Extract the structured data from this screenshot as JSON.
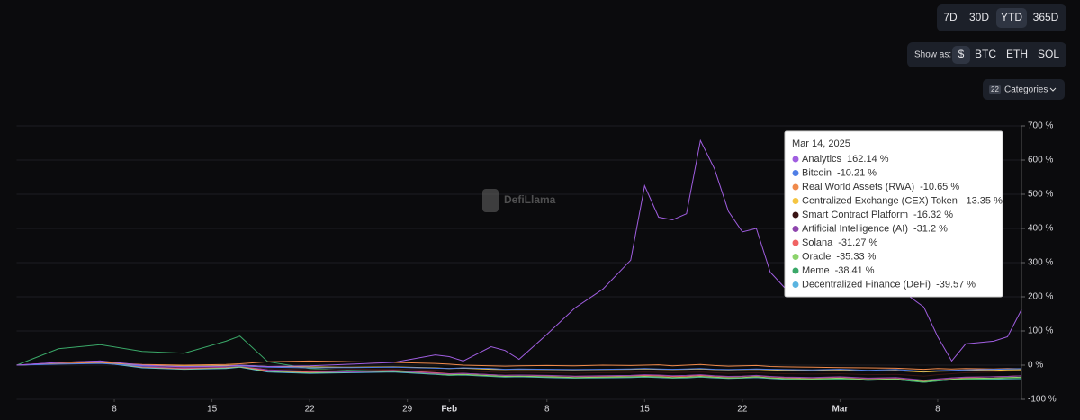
{
  "chart_data": {
    "type": "line",
    "watermark": "DefiLlama",
    "controls": {
      "ranges": [
        "7D",
        "30D",
        "YTD",
        "365D"
      ],
      "show_as_label": "Show as:",
      "currencies": [
        "$",
        "BTC",
        "ETH",
        "SOL"
      ],
      "categories_count": 22,
      "categories_label": "Categories"
    },
    "x": [
      1,
      4,
      7,
      10,
      13,
      16,
      17,
      19,
      22,
      25,
      28,
      31,
      32,
      33,
      35,
      36,
      37,
      39,
      41,
      43,
      45,
      46,
      47,
      48,
      49,
      50,
      51,
      52,
      53,
      54,
      55,
      56,
      58,
      60,
      62,
      64,
      66,
      67,
      68,
      69,
      71,
      72,
      73
    ],
    "xlim": [
      1,
      73
    ],
    "xticks": [
      8,
      15,
      22,
      29,
      {
        "value": 32,
        "label": "Feb"
      },
      {
        "value": 39,
        "label": "8"
      },
      {
        "value": 46,
        "label": "15"
      },
      {
        "value": 53,
        "label": "22"
      },
      {
        "value": 60,
        "label": "Mar"
      },
      {
        "value": 67,
        "label": "8"
      }
    ],
    "ylim": [
      -100,
      700
    ],
    "yticks": [
      {
        "value": -100,
        "label": "-100 %"
      },
      {
        "value": 0,
        "label": "0 %"
      },
      {
        "value": 100,
        "label": "100 %"
      },
      {
        "value": 200,
        "label": "200 %"
      },
      {
        "value": 300,
        "label": "300 %"
      },
      {
        "value": 400,
        "label": "400 %"
      },
      {
        "value": 500,
        "label": "500 %"
      },
      {
        "value": 600,
        "label": "600 %"
      },
      {
        "value": 700,
        "label": "700 %"
      }
    ],
    "grid": true,
    "series": [
      {
        "name": "Analytics",
        "color": "#a05ee0",
        "values": [
          0,
          8,
          12,
          0,
          -5,
          -3,
          0,
          -4,
          -2,
          3,
          8,
          30,
          25,
          12,
          54,
          43,
          17,
          90,
          167,
          222,
          307,
          525,
          433,
          425,
          443,
          657,
          575,
          450,
          390,
          400,
          272,
          228,
          200,
          260,
          200,
          230,
          170,
          83,
          12,
          62,
          70,
          83,
          162.14
        ]
      },
      {
        "name": "Bitcoin",
        "color": "#4f7ee6",
        "values": [
          0,
          3,
          5,
          -2,
          -4,
          -3,
          -2,
          -6,
          -8,
          -7,
          -6,
          -9,
          -10,
          -8,
          -10,
          -12,
          -11,
          -12,
          -13,
          -12,
          -11,
          -10,
          -11,
          -12,
          -11,
          -10,
          -12,
          -13,
          -12,
          -11,
          -12,
          -13,
          -14,
          -12,
          -15,
          -13,
          -18,
          -16,
          -15,
          -14,
          -12,
          -11,
          -10.21
        ]
      },
      {
        "name": "Real World Assets (RWA)",
        "color": "#f08a4b",
        "values": [
          0,
          5,
          8,
          2,
          0,
          2,
          4,
          10,
          12,
          10,
          8,
          5,
          3,
          0,
          -2,
          -3,
          -2,
          -1,
          -2,
          0,
          -1,
          0,
          1,
          -2,
          0,
          2,
          -1,
          -3,
          -2,
          -1,
          -4,
          -5,
          -6,
          -7,
          -8,
          -9,
          -12,
          -10,
          -11,
          -10,
          -11,
          -10,
          -10.65
        ]
      },
      {
        "name": "Centralized Exchange (CEX) Token",
        "color": "#f5c542",
        "values": [
          0,
          4,
          6,
          0,
          -3,
          -1,
          0,
          -4,
          -5,
          -6,
          -5,
          -8,
          -10,
          -9,
          -12,
          -13,
          -12,
          -13,
          -14,
          -13,
          -12,
          -11,
          -12,
          -13,
          -12,
          -11,
          -13,
          -14,
          -13,
          -12,
          -14,
          -15,
          -16,
          -15,
          -17,
          -16,
          -20,
          -18,
          -17,
          -16,
          -15,
          -14,
          -13.35
        ]
      },
      {
        "name": "Smart Contract Platform",
        "color": "#3a1414",
        "values": [
          0,
          6,
          10,
          -2,
          -6,
          -4,
          -2,
          -10,
          -14,
          -12,
          -11,
          -15,
          -18,
          -16,
          -20,
          -22,
          -21,
          -22,
          -24,
          -22,
          -21,
          -20,
          -21,
          -22,
          -21,
          -20,
          -22,
          -24,
          -23,
          -22,
          -24,
          -25,
          -26,
          -25,
          -28,
          -27,
          -32,
          -28,
          -25,
          -22,
          -20,
          -18,
          -16.32
        ]
      },
      {
        "name": "Artificial Intelligence (AI)",
        "color": "#8e44ad",
        "values": [
          0,
          8,
          12,
          -4,
          -8,
          -5,
          -2,
          -14,
          -18,
          -20,
          -16,
          -24,
          -26,
          -24,
          -28,
          -30,
          -29,
          -30,
          -32,
          -31,
          -30,
          -28,
          -29,
          -31,
          -30,
          -28,
          -31,
          -33,
          -32,
          -30,
          -33,
          -35,
          -36,
          -34,
          -38,
          -36,
          -44,
          -40,
          -37,
          -35,
          -34,
          -33,
          -31.2
        ]
      },
      {
        "name": "Solana",
        "color": "#f06363",
        "values": [
          0,
          7,
          10,
          -5,
          -10,
          -6,
          -3,
          -16,
          -20,
          -18,
          -15,
          -22,
          -25,
          -24,
          -28,
          -30,
          -29,
          -31,
          -33,
          -32,
          -31,
          -30,
          -31,
          -33,
          -32,
          -30,
          -32,
          -34,
          -33,
          -31,
          -34,
          -36,
          -37,
          -35,
          -39,
          -37,
          -45,
          -41,
          -38,
          -36,
          -34,
          -33,
          -31.27
        ]
      },
      {
        "name": "Oracle",
        "color": "#8cd36b",
        "values": [
          0,
          6,
          9,
          -6,
          -11,
          -8,
          -5,
          -18,
          -22,
          -20,
          -18,
          -25,
          -28,
          -27,
          -31,
          -33,
          -32,
          -34,
          -36,
          -35,
          -34,
          -33,
          -34,
          -36,
          -35,
          -33,
          -35,
          -37,
          -36,
          -34,
          -37,
          -39,
          -40,
          -38,
          -42,
          -40,
          -48,
          -44,
          -41,
          -39,
          -38,
          -36,
          -35.33
        ]
      },
      {
        "name": "Meme",
        "color": "#3aa868",
        "values": [
          0,
          48,
          60,
          40,
          35,
          70,
          85,
          10,
          -10,
          -15,
          -18,
          -26,
          -30,
          -28,
          -32,
          -34,
          -33,
          -35,
          -37,
          -36,
          -35,
          -34,
          -35,
          -37,
          -36,
          -34,
          -36,
          -38,
          -37,
          -35,
          -38,
          -40,
          -42,
          -40,
          -44,
          -42,
          -50,
          -46,
          -43,
          -41,
          -40,
          -39,
          -38.41
        ]
      },
      {
        "name": "Decentralized Finance (DeFi)",
        "color": "#5ab4e0",
        "values": [
          0,
          5,
          8,
          -8,
          -12,
          -10,
          -6,
          -20,
          -24,
          -22,
          -20,
          -27,
          -30,
          -29,
          -33,
          -35,
          -34,
          -36,
          -38,
          -37,
          -36,
          -35,
          -36,
          -38,
          -37,
          -35,
          -37,
          -39,
          -38,
          -36,
          -39,
          -41,
          -42,
          -40,
          -44,
          -42,
          -50,
          -46,
          -43,
          -41,
          -41,
          -40,
          -39.57
        ]
      }
    ],
    "tooltip": {
      "title": "Mar 14, 2025",
      "value_labels": [
        "162.14 %",
        "-10.21 %",
        "-10.65 %",
        "-13.35 %",
        "-16.32 %",
        "-31.2 %",
        "-31.27 %",
        "-35.33 %",
        "-38.41 %",
        "-39.57 %"
      ]
    }
  }
}
